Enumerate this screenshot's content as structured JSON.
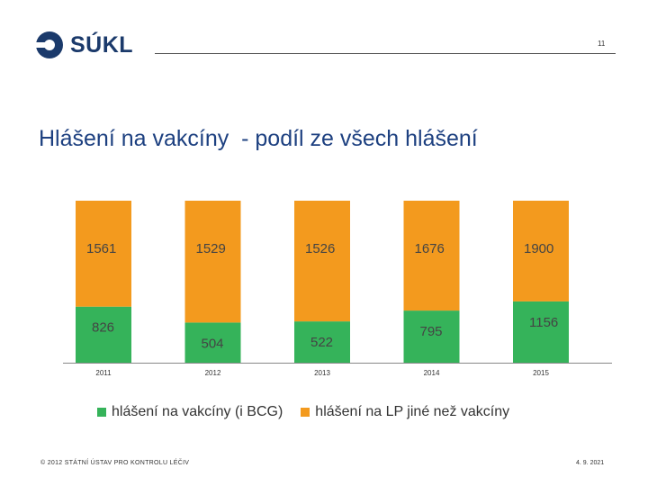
{
  "header": {
    "logo_text": "SÚKL",
    "page_number": "11"
  },
  "title": "Hlášení na vakcíny  - podíl ze všech hlášení",
  "colors": {
    "vaccine": "#35b35a",
    "other": "#f39a1e",
    "logo": "#1b3a6b",
    "title": "#1d4080"
  },
  "chart_data": {
    "type": "bar",
    "stacked": true,
    "categories": [
      "2011",
      "2012",
      "2013",
      "2014",
      "2015"
    ],
    "series": [
      {
        "name": "hlášení na vakcíny (i BCG)",
        "values": [
          826,
          504,
          522,
          795,
          1156
        ]
      },
      {
        "name": "hlášení na LP jiné než vakcíny",
        "values": [
          1561,
          1529,
          1526,
          1676,
          1900
        ]
      }
    ],
    "normalized_percent": true,
    "grid": false,
    "legend": "bottom"
  },
  "footer": {
    "left": "© 2012 STÁTNÍ ÚSTAV PRO KONTROLU LÉČIV",
    "right": "4. 9. 2021"
  }
}
